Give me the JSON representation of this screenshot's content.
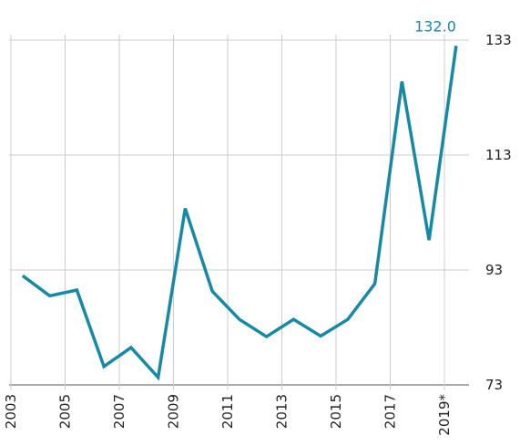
{
  "chart_data": {
    "type": "line",
    "categories": [
      "2003",
      null,
      "2005",
      null,
      "2007",
      null,
      "2009",
      null,
      "2011",
      null,
      "2013",
      null,
      "2015",
      null,
      "2017",
      null,
      "2019*"
    ],
    "series": [
      {
        "color": "#168aa5",
        "values": [
          92,
          88.5,
          89.5,
          76.2,
          79.5,
          74.3,
          103.7,
          89.3,
          84.4,
          81.4,
          84.4,
          81.5,
          84.4,
          90.6,
          125.8,
          98.2,
          132.0
        ],
        "value_labels": [
          null,
          null,
          null,
          null,
          null,
          null,
          null,
          null,
          null,
          null,
          null,
          null,
          null,
          null,
          null,
          null,
          "132.0"
        ]
      }
    ],
    "ylim": [
      73,
      133
    ],
    "yticks": [
      73,
      93,
      113,
      133
    ],
    "grid": true,
    "y_axis_side": "right"
  }
}
